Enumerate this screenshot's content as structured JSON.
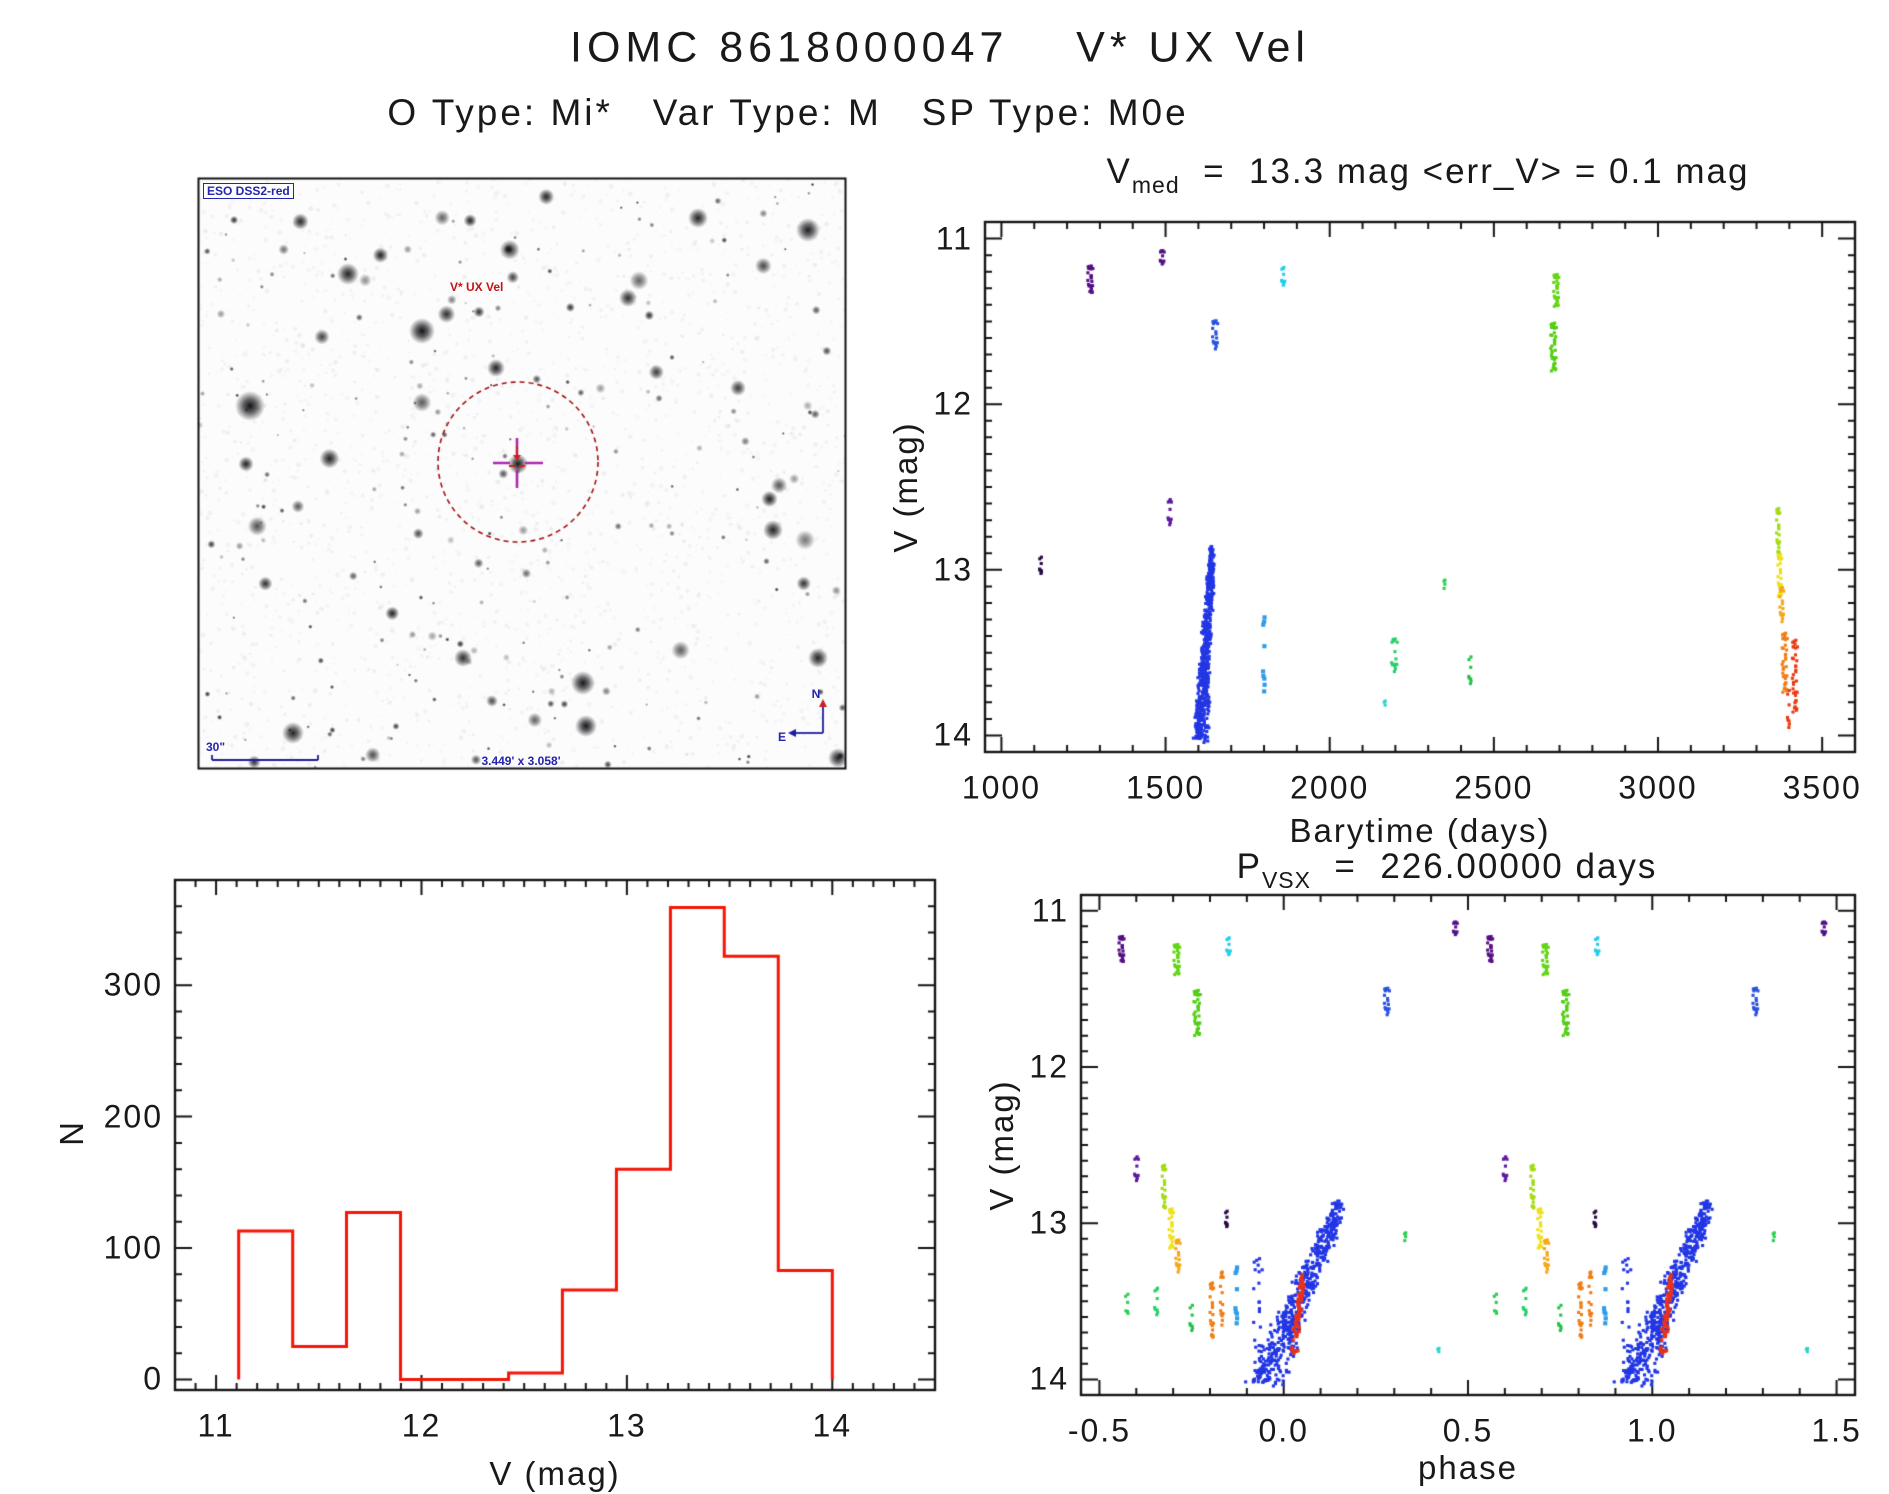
{
  "page_title": "IOMC 8618000047    V* UX Vel",
  "subtitle": "O Type: Mi*   Var Type: M   SP Type: M0e",
  "colors": {
    "frame": "#141414",
    "text": "#191919",
    "histogram_red": "#f31507",
    "annotation_blue": "#1c1c9e",
    "annotation_red": "#a31212",
    "crosshair_magenta": "#b028b0",
    "crosshair_arrow_red": "#cc2020"
  },
  "finding_chart": {
    "survey_label": "ESO DSS2-red",
    "target_label": "V* UX Vel",
    "scale_label": "30\"",
    "fov_label": "3.449' x 3.058'",
    "compass_north": "N",
    "compass_east": "E"
  },
  "chart_data": [
    {
      "id": "lightcurve",
      "type": "scatter",
      "title_parts": {
        "base": "V",
        "sub": "med",
        "rest": "  =  13.3 mag <err_V> = 0.1 mag"
      },
      "xlabel": "Barytime (days)",
      "ylabel": "V (mag)",
      "xlim": [
        950,
        3600
      ],
      "ylim": [
        10.9,
        14.1
      ],
      "y_inverted_mag_axis": true,
      "xticks": [
        1000,
        1500,
        2000,
        2500,
        3000,
        3500
      ],
      "xtick_labels": [
        "1000",
        "1500",
        "2000",
        "2500",
        "3000",
        "3500"
      ],
      "yticks": [
        11,
        12,
        13,
        14
      ],
      "ytick_labels": [
        "11",
        "12",
        "13",
        "14"
      ],
      "x_minor": 100,
      "y_minor": 0.1,
      "clusters": [
        {
          "x": 1120,
          "y0": 12.92,
          "y1": 13.03,
          "n": 8,
          "w": 5,
          "c": "#2a0a44"
        },
        {
          "x": 1271,
          "y0": 11.16,
          "y1": 11.33,
          "n": 24,
          "w": 8,
          "c": "#551183"
        },
        {
          "x": 1489,
          "y0": 11.07,
          "y1": 11.16,
          "n": 12,
          "w": 7,
          "c": "#551183"
        },
        {
          "x": 1512,
          "y0": 12.57,
          "y1": 12.74,
          "n": 11,
          "w": 6,
          "c": "#5c1a9e"
        },
        {
          "x": 1651,
          "y0": 11.49,
          "y1": 11.68,
          "n": 18,
          "w": 8,
          "c": "#2a52e0"
        },
        {
          "type": "diag",
          "x0": 1642,
          "y0": 12.86,
          "x1": 1606,
          "y1": 14.03,
          "n": 560,
          "w0": 10,
          "w1": 26,
          "c": "#2236e4"
        },
        {
          "x": 1600,
          "y0": 13.82,
          "y1": 14.02,
          "n": 16,
          "w": 8,
          "c": "#2236e4"
        },
        {
          "x": 1800,
          "y0": 13.27,
          "y1": 13.77,
          "n": 9,
          "w": 4,
          "c": "#2f9ce8",
          "r": 2.6
        },
        {
          "x": 1858,
          "y0": 11.17,
          "y1": 11.29,
          "n": 10,
          "w": 6,
          "c": "#25cdea"
        },
        {
          "x": 2168,
          "y0": 13.79,
          "y1": 13.86,
          "n": 3,
          "w": 3,
          "c": "#2bd3cf"
        },
        {
          "x": 2196,
          "y0": 13.41,
          "y1": 13.63,
          "n": 14,
          "w": 10,
          "c": "#27d06a"
        },
        {
          "x": 2350,
          "y0": 13.06,
          "y1": 13.13,
          "n": 4,
          "w": 3,
          "c": "#27d04e"
        },
        {
          "x": 2428,
          "y0": 13.52,
          "y1": 13.7,
          "n": 8,
          "w": 6,
          "c": "#24c24a"
        },
        {
          "x": 2690,
          "y0": 11.21,
          "y1": 11.41,
          "n": 28,
          "w": 8,
          "c": "#64d517"
        },
        {
          "x": 2682,
          "y0": 11.5,
          "y1": 11.8,
          "n": 36,
          "w": 9,
          "c": "#52cf15"
        },
        {
          "x": 3366,
          "y0": 12.62,
          "y1": 12.91,
          "n": 24,
          "w": 5,
          "c": "#a6db15"
        },
        {
          "x": 3371,
          "y0": 12.9,
          "y1": 13.16,
          "n": 26,
          "w": 6,
          "c": "#efe11c"
        },
        {
          "x": 3377,
          "y0": 13.1,
          "y1": 13.33,
          "n": 18,
          "w": 6,
          "c": "#f5a716"
        },
        {
          "x": 3386,
          "y0": 13.37,
          "y1": 13.74,
          "n": 34,
          "w": 8,
          "c": "#f07d14"
        },
        {
          "x": 3417,
          "y0": 13.41,
          "y1": 13.86,
          "n": 34,
          "w": 8,
          "c": "#ea3911"
        },
        {
          "x": 3398,
          "y0": 13.72,
          "y1": 13.97,
          "n": 8,
          "w": 5,
          "c": "#ea3911"
        }
      ]
    },
    {
      "id": "histogram",
      "type": "histogram",
      "xlabel": "V (mag)",
      "ylabel": "N",
      "xlim": [
        10.8,
        14.5
      ],
      "ylim": [
        -8,
        380
      ],
      "xticks": [
        11,
        12,
        13,
        14
      ],
      "xtick_labels": [
        "11",
        "12",
        "13",
        "14"
      ],
      "yticks": [
        0,
        100,
        200,
        300
      ],
      "ytick_labels": [
        "0",
        "100",
        "200",
        "300"
      ],
      "x_minor": 0.1,
      "y_minor": 20,
      "bin_edges": [
        11.11,
        11.373,
        11.635,
        11.898,
        12.161,
        12.424,
        12.686,
        12.949,
        13.212,
        13.474,
        13.737,
        14.0
      ],
      "counts": [
        113,
        25,
        127,
        0,
        0,
        5,
        68,
        160,
        359,
        322,
        83
      ],
      "color": "#f31507"
    },
    {
      "id": "phase",
      "type": "scatter",
      "title_parts": {
        "base": "P",
        "sub": "VSX",
        "rest": "  =  226.00000 days"
      },
      "xlabel": "phase",
      "ylabel": "V (mag)",
      "xlim": [
        -0.55,
        1.55
      ],
      "ylim": [
        10.9,
        14.1
      ],
      "y_inverted_mag_axis": true,
      "repeat_offset": 1.0,
      "xticks": [
        -0.5,
        0.0,
        0.5,
        1.0,
        1.5
      ],
      "xtick_labels": [
        "-0.5",
        "0.0",
        "0.5",
        "1.0",
        "1.5"
      ],
      "yticks": [
        11,
        12,
        13,
        14
      ],
      "ytick_labels": [
        "11",
        "12",
        "13",
        "14"
      ],
      "x_minor": 0.1,
      "y_minor": 0.1,
      "clusters": [
        {
          "x": -0.44,
          "y0": 11.16,
          "y1": 11.33,
          "n": 24,
          "w": 0.007,
          "c": "#551183"
        },
        {
          "x": 0.465,
          "y0": 11.07,
          "y1": 11.16,
          "n": 12,
          "w": 0.006,
          "c": "#551183"
        },
        {
          "x": -0.4,
          "y0": 12.57,
          "y1": 12.74,
          "n": 11,
          "w": 0.006,
          "c": "#5c1a9e"
        },
        {
          "x": 0.28,
          "y0": 11.49,
          "y1": 11.68,
          "n": 18,
          "w": 0.007,
          "c": "#2a52e0"
        },
        {
          "x": -0.15,
          "y0": 11.17,
          "y1": 11.29,
          "n": 10,
          "w": 0.006,
          "c": "#25cdea"
        },
        {
          "x": -0.29,
          "y0": 11.21,
          "y1": 11.41,
          "n": 28,
          "w": 0.008,
          "c": "#64d517"
        },
        {
          "x": -0.235,
          "y0": 11.5,
          "y1": 11.8,
          "n": 36,
          "w": 0.009,
          "c": "#52cf15"
        },
        {
          "x": -0.155,
          "y0": 12.92,
          "y1": 13.03,
          "n": 8,
          "w": 0.004,
          "c": "#2a0a44"
        },
        {
          "x": -0.325,
          "y0": 12.62,
          "y1": 12.91,
          "n": 24,
          "w": 0.005,
          "c": "#a6db15"
        },
        {
          "x": -0.305,
          "y0": 12.9,
          "y1": 13.16,
          "n": 26,
          "w": 0.006,
          "c": "#efe11c"
        },
        {
          "x": -0.287,
          "y0": 13.1,
          "y1": 13.33,
          "n": 18,
          "w": 0.006,
          "c": "#f5a716"
        },
        {
          "x": -0.195,
          "y0": 13.37,
          "y1": 13.74,
          "n": 24,
          "w": 0.005,
          "c": "#f07d14"
        },
        {
          "x": -0.168,
          "y0": 13.3,
          "y1": 13.68,
          "n": 16,
          "w": 0.004,
          "c": "#f07d14"
        },
        {
          "x": -0.128,
          "y0": 13.27,
          "y1": 13.67,
          "n": 9,
          "w": 0.004,
          "c": "#2f9ce8",
          "r": 2.6
        },
        {
          "x": -0.345,
          "y0": 13.41,
          "y1": 13.6,
          "n": 9,
          "w": 0.007,
          "c": "#27d06a"
        },
        {
          "x": -0.425,
          "y0": 13.45,
          "y1": 13.6,
          "n": 6,
          "w": 0.006,
          "c": "#27d04e"
        },
        {
          "x": 0.33,
          "y0": 13.06,
          "y1": 13.13,
          "n": 4,
          "w": 0.003,
          "c": "#27d04e"
        },
        {
          "x": 0.42,
          "y0": 13.8,
          "y1": 13.86,
          "n": 3,
          "w": 0.003,
          "c": "#2bd3cf"
        },
        {
          "x": -0.25,
          "y0": 13.52,
          "y1": 13.7,
          "n": 8,
          "w": 0.006,
          "c": "#24c24a"
        },
        {
          "type": "diag",
          "x0": 0.155,
          "y0": 12.86,
          "x1": -0.055,
          "y1": 14.03,
          "n": 560,
          "w0": 0.025,
          "w1": 0.06,
          "c": "#2236e4"
        },
        {
          "x": -0.07,
          "y0": 13.2,
          "y1": 14.0,
          "n": 26,
          "w": 0.012,
          "c": "#2236e4"
        },
        {
          "type": "diag",
          "x0": 0.052,
          "y0": 13.33,
          "x1": 0.028,
          "y1": 13.82,
          "n": 70,
          "w0": 0.008,
          "w1": 0.012,
          "c": "#e8321a",
          "r": 2.2
        }
      ]
    }
  ]
}
